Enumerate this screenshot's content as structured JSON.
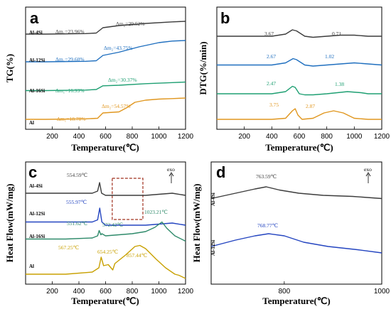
{
  "chart_data": [
    {
      "panel": "a",
      "type": "line",
      "xlabel": "Temperature(℃)",
      "ylabel": "TG(%)",
      "xlim": [
        0,
        1200
      ],
      "xticks": [
        200,
        400,
        600,
        800,
        1000,
        1200
      ],
      "series": [
        {
          "name": "Al-4Si",
          "color": "#3c3c3c",
          "x": [
            0,
            150,
            450,
            530,
            580,
            700,
            900,
            1100,
            1200
          ],
          "y": [
            0.84,
            0.84,
            0.845,
            0.85,
            0.9,
            0.92,
            0.94,
            0.955,
            0.96
          ]
        },
        {
          "name": "Al-12Si",
          "color": "#1f6fbf",
          "x": [
            0,
            150,
            450,
            530,
            580,
            700,
            850,
            1000,
            1100,
            1200
          ],
          "y": [
            0.58,
            0.58,
            0.585,
            0.59,
            0.64,
            0.67,
            0.72,
            0.76,
            0.775,
            0.78
          ]
        },
        {
          "name": "Al-16Si",
          "color": "#1e9f72",
          "x": [
            0,
            150,
            450,
            530,
            580,
            700,
            900,
            1100,
            1200
          ],
          "y": [
            0.31,
            0.31,
            0.315,
            0.32,
            0.355,
            0.36,
            0.375,
            0.385,
            0.39
          ]
        },
        {
          "name": "Al",
          "color": "#e0961e",
          "x": [
            0,
            150,
            450,
            540,
            580,
            700,
            760,
            820,
            900,
            1000,
            1100,
            1200
          ],
          "y": [
            0.04,
            0.04,
            0.045,
            0.05,
            0.1,
            0.11,
            0.15,
            0.2,
            0.22,
            0.23,
            0.235,
            0.24
          ]
        }
      ],
      "sample_labels": [
        "Al-4Si",
        "Al-12Si",
        "Al-16Si",
        "Al"
      ],
      "annotations": [
        {
          "text": "Δm₁=23.96%",
          "color": "#3c3c3c"
        },
        {
          "text": "Δm₂=29.52%",
          "color": "#3c3c3c"
        },
        {
          "text": "Δm₁=29.60%",
          "color": "#1f6fbf"
        },
        {
          "text": "Δm₂=43.75%",
          "color": "#1f6fbf"
        },
        {
          "text": "Δm₁=16.93%",
          "color": "#1e9f72"
        },
        {
          "text": "Δm₂=30.37%",
          "color": "#1e9f72"
        },
        {
          "text": "Δm₁=18.78%",
          "color": "#e0961e"
        },
        {
          "text": "Δm₂=54.57%",
          "color": "#e0961e"
        }
      ]
    },
    {
      "panel": "b",
      "type": "line",
      "xlabel": "Temperature(℃)",
      "ylabel": "DTG(%/min)",
      "xlim": [
        0,
        1200
      ],
      "xticks": [
        200,
        400,
        600,
        800,
        1000,
        1200
      ],
      "series": [
        {
          "color": "#3c3c3c",
          "x": [
            0,
            400,
            500,
            550,
            580,
            640,
            700,
            800,
            900,
            1000,
            1100,
            1200
          ],
          "y": [
            0.82,
            0.82,
            0.84,
            0.88,
            0.87,
            0.82,
            0.81,
            0.82,
            0.83,
            0.83,
            0.82,
            0.82
          ]
        },
        {
          "color": "#1f6fbf",
          "x": [
            0,
            400,
            500,
            555,
            580,
            640,
            700,
            800,
            900,
            1000,
            1100,
            1200
          ],
          "y": [
            0.55,
            0.55,
            0.57,
            0.61,
            0.6,
            0.55,
            0.54,
            0.55,
            0.56,
            0.57,
            0.56,
            0.55
          ]
        },
        {
          "color": "#1e9f72",
          "x": [
            0,
            400,
            500,
            550,
            570,
            600,
            640,
            700,
            800,
            950,
            1050,
            1100,
            1200
          ],
          "y": [
            0.28,
            0.28,
            0.3,
            0.35,
            0.34,
            0.28,
            0.27,
            0.27,
            0.28,
            0.3,
            0.29,
            0.28,
            0.28
          ]
        },
        {
          "color": "#e0961e",
          "x": [
            0,
            400,
            500,
            550,
            570,
            590,
            620,
            700,
            780,
            850,
            920,
            1000,
            1100,
            1200
          ],
          "y": [
            0.04,
            0.04,
            0.05,
            0.12,
            0.14,
            0.08,
            0.04,
            0.05,
            0.1,
            0.12,
            0.1,
            0.05,
            0.04,
            0.04
          ]
        }
      ],
      "annotations": [
        {
          "text": "3.67",
          "color": "#3c3c3c"
        },
        {
          "text": "0.71",
          "color": "#3c3c3c"
        },
        {
          "text": "2.67",
          "color": "#1f6fbf"
        },
        {
          "text": "1.02",
          "color": "#1f6fbf"
        },
        {
          "text": "2.47",
          "color": "#1e9f72"
        },
        {
          "text": "1.38",
          "color": "#1e9f72"
        },
        {
          "text": "3.75",
          "color": "#e0961e"
        },
        {
          "text": "2.87",
          "color": "#e0961e"
        }
      ]
    },
    {
      "panel": "c",
      "type": "line",
      "xlabel": "Temperature(℃)",
      "ylabel": "Heat Flow(mW/mg)",
      "xlim": [
        0,
        1200
      ],
      "xticks": [
        200,
        400,
        600,
        800,
        1000,
        1200
      ],
      "exo_label": "exo",
      "series": [
        {
          "name": "Al-4Si",
          "color": "#3c3c3c",
          "x": [
            0,
            300,
            500,
            540,
            555,
            570,
            600,
            700,
            800,
            900,
            1000,
            1100,
            1200
          ],
          "y": [
            0.8,
            0.8,
            0.8,
            0.82,
            0.9,
            0.8,
            0.78,
            0.78,
            0.78,
            0.78,
            0.79,
            0.8,
            0.78
          ]
        },
        {
          "name": "Al-12Si",
          "color": "#2344c0",
          "x": [
            0,
            300,
            500,
            540,
            556,
            572,
            600,
            700,
            800,
            900,
            1000,
            1100,
            1200
          ],
          "y": [
            0.53,
            0.53,
            0.53,
            0.55,
            0.66,
            0.53,
            0.5,
            0.5,
            0.5,
            0.5,
            0.51,
            0.52,
            0.5
          ]
        },
        {
          "name": "Al-16Si",
          "color": "#2e8a6a",
          "x": [
            0,
            300,
            500,
            540,
            552,
            565,
            572,
            600,
            700,
            800,
            900,
            970,
            1023,
            1060,
            1120,
            1200
          ],
          "y": [
            0.37,
            0.37,
            0.38,
            0.4,
            0.45,
            0.41,
            0.42,
            0.4,
            0.41,
            0.42,
            0.44,
            0.48,
            0.53,
            0.47,
            0.4,
            0.35
          ]
        },
        {
          "name": "Al",
          "color": "#c8a000",
          "x": [
            0,
            300,
            500,
            550,
            567,
            585,
            620,
            654,
            670,
            750,
            820,
            857,
            900,
            980,
            1050,
            1120,
            1150,
            1200
          ],
          "y": [
            0.04,
            0.04,
            0.06,
            0.1,
            0.2,
            0.12,
            0.13,
            0.08,
            0.14,
            0.22,
            0.3,
            0.31,
            0.28,
            0.18,
            0.1,
            0.04,
            0.03,
            0.0
          ]
        }
      ],
      "sample_labels": [
        "Al-4Si",
        "Al-12Si",
        "Al-16Si",
        "Al"
      ],
      "annotations": [
        {
          "text": "554.59℃",
          "color": "#3c3c3c"
        },
        {
          "text": "555.97℃",
          "color": "#2344c0"
        },
        {
          "text": "551.62℃",
          "color": "#2e8a6a"
        },
        {
          "text": "572.42℃",
          "color": "#2e8a6a"
        },
        {
          "text": "1023.21℃",
          "color": "#2e8a6a"
        },
        {
          "text": "567.25℃",
          "color": "#c8a000"
        },
        {
          "text": "654.25℃",
          "color": "#c8a000"
        },
        {
          "text": "857.44℃",
          "color": "#c8a000"
        }
      ],
      "highlight_box_x": [
        650,
        880
      ]
    },
    {
      "panel": "d",
      "type": "line",
      "xlabel": "Temperature(℃)",
      "ylabel": "Heat Flow(mW/mg)",
      "xlim": [
        650,
        1000
      ],
      "xticks": [
        800,
        1000
      ],
      "exo_label": "exo",
      "series": [
        {
          "name": "Al-4Si",
          "color": "#3c3c3c",
          "x": [
            650,
            700,
            740,
            763,
            790,
            830,
            880,
            940,
            1000
          ],
          "y": [
            0.75,
            0.8,
            0.84,
            0.86,
            0.83,
            0.8,
            0.78,
            0.77,
            0.75
          ]
        },
        {
          "name": "Al-12Si",
          "color": "#2344c0",
          "x": [
            650,
            700,
            740,
            768,
            800,
            840,
            890,
            950,
            1000
          ],
          "y": [
            0.3,
            0.36,
            0.4,
            0.42,
            0.4,
            0.34,
            0.3,
            0.27,
            0.24
          ]
        }
      ],
      "sample_labels": [
        "Al-4Si",
        "Al-12Si"
      ],
      "annotations": [
        {
          "text": "763.59℃",
          "color": "#3c3c3c"
        },
        {
          "text": "768.77℃",
          "color": "#2344c0"
        }
      ]
    }
  ]
}
